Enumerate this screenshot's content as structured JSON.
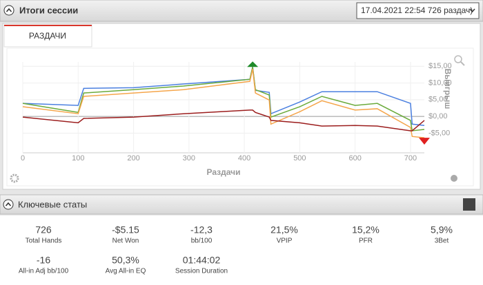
{
  "header": {
    "title": "Итоги сессии",
    "session_select": "17.04.2021 22:54 726 раздач)"
  },
  "tabs": [
    "РАЗДАЧИ"
  ],
  "chart_data": {
    "type": "line",
    "xlabel": "Раздачи",
    "ylabel": "Выигрыш",
    "x": [
      0,
      100,
      110,
      200,
      290,
      410,
      415,
      420,
      445,
      448,
      500,
      540,
      600,
      640,
      700,
      703,
      725
    ],
    "series": [
      {
        "color": "#4a7fe0",
        "values": [
          3.9,
          3.3,
          8.4,
          8.6,
          9.7,
          11.1,
          14.8,
          7.8,
          7.2,
          0.8,
          4.3,
          7.4,
          7.4,
          7.4,
          3.9,
          -2.3,
          -2.7
        ]
      },
      {
        "color": "#6aaa3a",
        "values": [
          3.9,
          1.2,
          7.0,
          8.0,
          9.1,
          11.1,
          14.8,
          8.0,
          6.4,
          -0.2,
          2.9,
          6.0,
          3.3,
          3.9,
          -1.2,
          -4.3,
          -3.9
        ]
      },
      {
        "color": "#f5a54a",
        "values": [
          2.9,
          0.8,
          6.0,
          7.0,
          8.0,
          10.5,
          14.2,
          7.0,
          4.9,
          -2.3,
          1.4,
          4.7,
          1.9,
          2.3,
          -3.3,
          -6.0,
          -6.4
        ]
      },
      {
        "color": "#9b1c1c",
        "values": [
          -0.2,
          -1.9,
          -0.6,
          -0.2,
          0.8,
          1.9,
          1.9,
          1.2,
          -0.2,
          -1.2,
          -1.9,
          -2.9,
          -2.7,
          -2.9,
          -4.3,
          -4.3,
          -1.2
        ]
      }
    ],
    "xlim": [
      0,
      725
    ],
    "ylim": [
      -10.9,
      16.3
    ],
    "xticks": [
      0,
      100,
      200,
      300,
      400,
      500,
      600,
      700
    ],
    "yticks": [
      {
        "value": -5,
        "label": "-$5,00"
      },
      {
        "value": 0,
        "label": "$0,00"
      },
      {
        "value": 5,
        "label": "$5,00"
      },
      {
        "value": 10,
        "label": "$10,00"
      },
      {
        "value": 15,
        "label": "$15,00"
      }
    ],
    "grid": true
  },
  "stats_header": {
    "title": "Ключевые статы"
  },
  "stats": [
    {
      "value": "726",
      "label": "Total Hands"
    },
    {
      "value": "-$5.15",
      "label": "Net Won"
    },
    {
      "value": "-12,3",
      "label": "bb/100"
    },
    {
      "value": "21,5%",
      "label": "VPIP"
    },
    {
      "value": "15,2%",
      "label": "PFR"
    },
    {
      "value": "5,9%",
      "label": "3Bet"
    },
    {
      "value": "-16",
      "label": "All-in Adj bb/100"
    },
    {
      "value": "50,3%",
      "label": "Avg All-in EQ"
    },
    {
      "value": "01:44:02",
      "label": "Session Duration"
    }
  ]
}
